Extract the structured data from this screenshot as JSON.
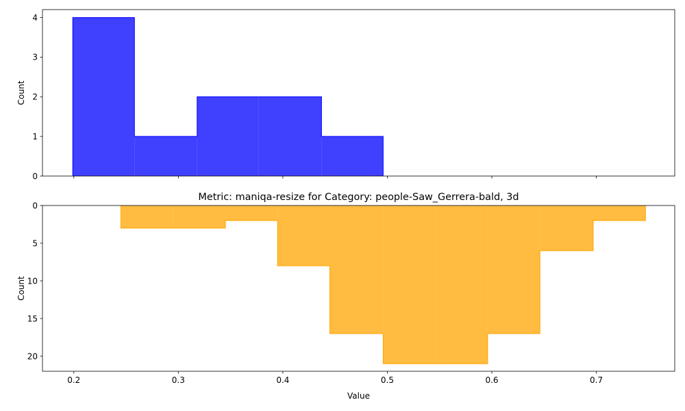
{
  "chart_data": [
    {
      "type": "bar",
      "style": "stepfilled",
      "title": "",
      "xlabel": "",
      "ylabel": "Count",
      "xlim": [
        0.17,
        0.775
      ],
      "ylim": [
        0,
        4.2
      ],
      "xticks": [
        "0.2",
        "0.3",
        "0.4",
        "0.5",
        "0.6",
        "0.7"
      ],
      "show_xtick_labels": false,
      "yticks": [
        "0",
        "1",
        "2",
        "3",
        "4"
      ],
      "grid": false,
      "color": "#0000ff",
      "bins": [
        {
          "x0": 0.199,
          "x1": 0.258,
          "value": 4
        },
        {
          "x0": 0.258,
          "x1": 0.318,
          "value": 1
        },
        {
          "x0": 0.318,
          "x1": 0.377,
          "value": 2
        },
        {
          "x0": 0.377,
          "x1": 0.437,
          "value": 2
        },
        {
          "x0": 0.437,
          "x1": 0.496,
          "value": 1
        }
      ]
    },
    {
      "type": "bar",
      "style": "stepfilled",
      "inverted_y": true,
      "title": "Metric: maniqa-resize for Category: people-Saw_Gerrera-bald, 3d",
      "xlabel": "Value",
      "ylabel": "Count",
      "xlim": [
        0.17,
        0.775
      ],
      "ylim": [
        22,
        0
      ],
      "xticks": [
        "0.2",
        "0.3",
        "0.4",
        "0.5",
        "0.6",
        "0.7"
      ],
      "yticks": [
        "0",
        "5",
        "10",
        "15",
        "20"
      ],
      "grid": false,
      "color": "#ffa500",
      "bins": [
        {
          "x0": 0.245,
          "x1": 0.295,
          "value": 3
        },
        {
          "x0": 0.295,
          "x1": 0.345,
          "value": 3
        },
        {
          "x0": 0.345,
          "x1": 0.395,
          "value": 2
        },
        {
          "x0": 0.395,
          "x1": 0.445,
          "value": 8
        },
        {
          "x0": 0.445,
          "x1": 0.496,
          "value": 17
        },
        {
          "x0": 0.496,
          "x1": 0.546,
          "value": 21
        },
        {
          "x0": 0.546,
          "x1": 0.596,
          "value": 21
        },
        {
          "x0": 0.596,
          "x1": 0.646,
          "value": 17
        },
        {
          "x0": 0.646,
          "x1": 0.697,
          "value": 6
        },
        {
          "x0": 0.697,
          "x1": 0.747,
          "value": 2
        }
      ]
    }
  ]
}
